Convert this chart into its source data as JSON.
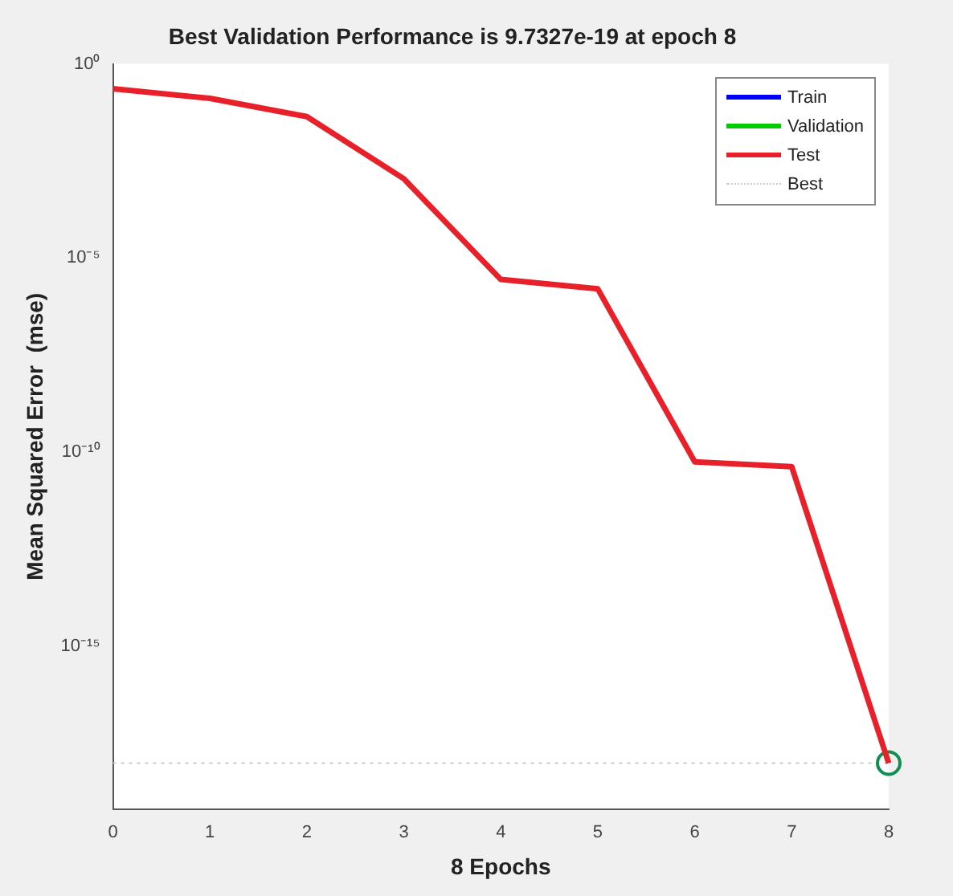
{
  "chart_data": {
    "type": "line",
    "title": "Best Validation Performance is 9.7327e-19 at epoch 8",
    "xlabel": "8 Epochs",
    "ylabel": "Mean Squared Error  (mse)",
    "x": [
      0,
      1,
      2,
      3,
      4,
      5,
      6,
      7,
      8
    ],
    "series": [
      {
        "name": "Train",
        "color": "#0000ff",
        "values": [
          null,
          null,
          null,
          null,
          null,
          null,
          null,
          null,
          null
        ]
      },
      {
        "name": "Validation",
        "color": "#00cc00",
        "values": [
          null,
          null,
          null,
          null,
          null,
          null,
          null,
          null,
          null
        ]
      },
      {
        "name": "Test",
        "color": "#e8202a",
        "values": [
          0.23,
          0.13,
          0.044,
          0.0011,
          2.8e-06,
          1.6e-06,
          5.6e-11,
          4.2e-11,
          9.7327e-19
        ]
      },
      {
        "type": "scatter",
        "color": "#109050",
        "marker": "circle",
        "x": [
          8
        ],
        "values": [
          9.7327e-19
        ]
      }
    ],
    "ref_lines": [
      {
        "axis": "y",
        "value": 9.7327e-19,
        "label": "Best",
        "color": "#cccccc",
        "line_style": "dotted"
      }
    ],
    "log": "y",
    "xlim": [
      0,
      8
    ],
    "xticks": [
      0,
      1,
      2,
      3,
      4,
      5,
      6,
      7,
      8
    ],
    "ylim": [
      6.3e-20,
      1
    ],
    "yticks": [
      {
        "value": 1e-15,
        "label": "10⁻¹⁵"
      },
      {
        "value": 1e-10,
        "label": "10⁻¹⁰"
      },
      {
        "value": 1e-05,
        "label": "10⁻⁵"
      },
      {
        "value": 1,
        "label": "10⁰"
      }
    ],
    "grid": false,
    "legend": "top right",
    "marker": "none",
    "line_style": "solid"
  }
}
